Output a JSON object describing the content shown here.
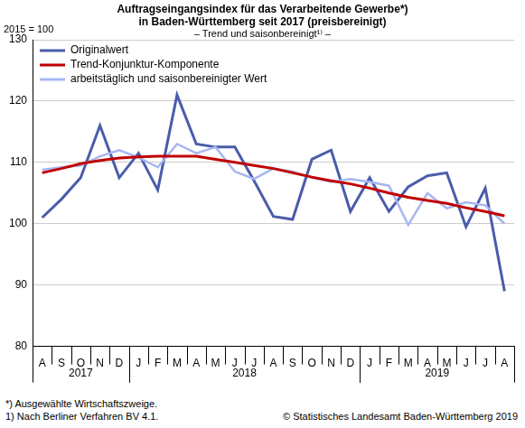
{
  "chart_data": {
    "type": "line",
    "title": [
      "Auftragseingangsindex für das Verarbeitende Gewerbe*)",
      "in Baden-Württemberg seit 2017 (preisbereinigt)"
    ],
    "subtitle": "– Trend und saisonbereinigt¹⁾ –",
    "ylabel": "2015 = 100",
    "categories": [
      "A",
      "S",
      "O",
      "N",
      "D",
      "J",
      "F",
      "M",
      "A",
      "M",
      "J",
      "J",
      "A",
      "S",
      "O",
      "N",
      "D",
      "J",
      "F",
      "M",
      "A",
      "M",
      "J",
      "J",
      "A"
    ],
    "groups": [
      {
        "label": "2017",
        "size": 5
      },
      {
        "label": "2018",
        "size": 12
      },
      {
        "label": "2019",
        "size": 8
      }
    ],
    "series": [
      {
        "name": "Originalwert",
        "color": "#4a5caa",
        "values": [
          101,
          104,
          107.5,
          116,
          107.5,
          111.5,
          105.5,
          121,
          113,
          112.5,
          112.5,
          107,
          101.2,
          100.7,
          110.5,
          112,
          102,
          107.5,
          102,
          106,
          107.8,
          108.3,
          99.5,
          105.8,
          89
        ]
      },
      {
        "name": "Trend-Konjunktur-Komponente",
        "color": "#c00000",
        "values": [
          108.3,
          109,
          109.8,
          110.3,
          110.7,
          110.9,
          111,
          111,
          111,
          110.5,
          110,
          109.5,
          109,
          108.3,
          107.6,
          107,
          106.5,
          105.8,
          105,
          104.3,
          103.8,
          103.3,
          102.6,
          102,
          101.3
        ]
      },
      {
        "name": "arbeitstäglich und saisonbereinigter Wert",
        "color": "#a8b6f0",
        "values": [
          108.8,
          109.2,
          109.5,
          111,
          112,
          110.8,
          109.2,
          113,
          111.5,
          112.5,
          108.5,
          107.3,
          109,
          108.5,
          107.5,
          106.8,
          107.3,
          106.8,
          106.2,
          99.8,
          105,
          102.5,
          103.5,
          103,
          100
        ]
      }
    ],
    "ylim": [
      80,
      130
    ],
    "yticks": [
      80,
      90,
      100,
      110,
      120,
      130
    ],
    "grid": true,
    "legend": "top-left",
    "footnotes": [
      "*) Ausgewählte Wirtschaftszweige.",
      "1) Nach Berliner Verfahren BV 4.1."
    ],
    "source": "© Statistisches Landesamt Baden-Württemberg 2019"
  }
}
